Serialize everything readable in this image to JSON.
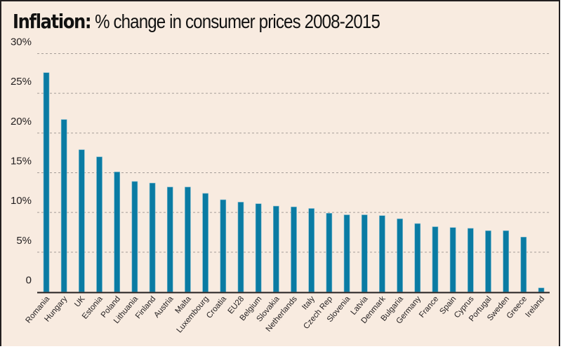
{
  "title": {
    "bold": "Inflation:",
    "rest": " % change in consumer prices 2008-2015"
  },
  "colors": {
    "background": "#f8ebe0",
    "bar": "#0a7ba3",
    "bar_edge": "#7ab9cf",
    "grid": "#8a8480",
    "axis": "#231f20",
    "text": "#231f20"
  },
  "chart_data": {
    "type": "bar",
    "title": "Inflation: % change in consumer prices 2008-2015",
    "xlabel": "",
    "ylabel": "",
    "ylim": [
      0,
      30
    ],
    "yticks": [
      0,
      5,
      10,
      15,
      20,
      25,
      30
    ],
    "ytick_labels": [
      "0",
      "5%",
      "10%",
      "15%",
      "20%",
      "25%",
      "30%"
    ],
    "grid": true,
    "legend": "none",
    "categories": [
      "Romania",
      "Hungary",
      "UK",
      "Estonia",
      "Poland",
      "Lithuania",
      "Finland",
      "Austria",
      "Malta",
      "Luxembourg",
      "Croatia",
      "EU28",
      "Belgium",
      "Slovakia",
      "Netherlands",
      "Italy",
      "Czech Rep",
      "Slovenia",
      "Latvia",
      "Denmark",
      "Bulgaria",
      "Germany",
      "France",
      "Spain",
      "Cyprus",
      "Portugal",
      "Sweden",
      "Greece",
      "Ireland"
    ],
    "values": [
      27.6,
      21.7,
      17.9,
      17.0,
      15.1,
      13.9,
      13.7,
      13.2,
      13.2,
      12.4,
      11.6,
      11.3,
      11.1,
      10.8,
      10.7,
      10.5,
      9.9,
      9.7,
      9.7,
      9.6,
      9.2,
      8.6,
      8.2,
      8.1,
      8.0,
      7.7,
      7.7,
      6.9,
      0.5
    ]
  }
}
